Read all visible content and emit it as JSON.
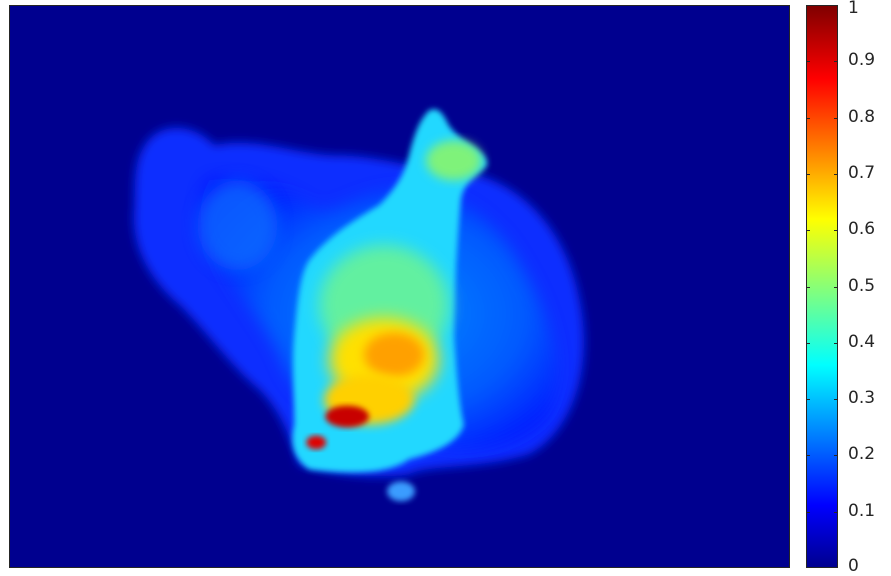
{
  "chart_data": {
    "type": "heatmap",
    "title": "",
    "xlabel": "",
    "ylabel": "",
    "colormap": "jet",
    "clim": [
      0,
      1
    ],
    "colorbar": {
      "ticks": [
        0,
        0.1,
        0.2,
        0.3,
        0.4,
        0.5,
        0.6,
        0.7,
        0.8,
        0.9,
        1
      ],
      "tick_labels": [
        "0",
        "0.1",
        "0.2",
        "0.3",
        "0.4",
        "0.5",
        "0.6",
        "0.7",
        "0.8",
        "0.9",
        "1"
      ]
    }
  }
}
